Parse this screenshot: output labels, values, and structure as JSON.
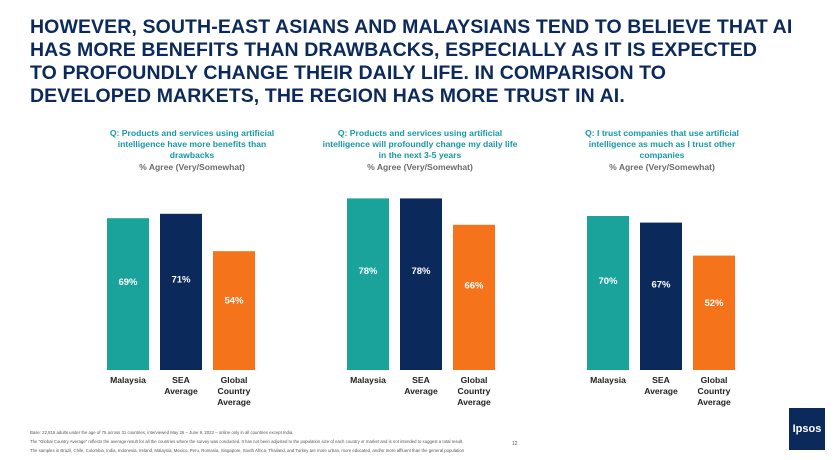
{
  "headline": [
    "HOWEVER, SOUTH-EAST ASIANS AND MALAYSIANS TEND TO BELIEVE THAT AI",
    "HAS MORE BENEFITS THAN DRAWBACKS, ESPECIALLY AS IT IS EXPECTED",
    "TO PROFOUNDLY CHANGE THEIR DAILY LIFE. IN COMPARISON TO",
    "DEVELOPED MARKETS, THE REGION HAS MORE TRUST IN AI."
  ],
  "colors": {
    "malaysia": "#1aa39a",
    "sea": "#0b2a5b",
    "global": "#f5731b",
    "headline": "#0b2a5b",
    "question": "#1598a8"
  },
  "chart_data": [
    {
      "type": "bar",
      "question": [
        "Q: Products and services using artificial",
        "intelligence have more benefits than",
        "drawbacks"
      ],
      "subtitle": "% Agree (Very/Somewhat)",
      "categories": [
        [
          "Malaysia"
        ],
        [
          "SEA",
          "Average"
        ],
        [
          "Global",
          "Country",
          "Average"
        ]
      ],
      "values": [
        69,
        71,
        54
      ],
      "labels": [
        "69%",
        "71%",
        "54%"
      ],
      "ylim": [
        0,
        80
      ]
    },
    {
      "type": "bar",
      "question": [
        "Q: Products and services using artificial",
        "intelligence will profoundly change my daily life",
        "in the next 3-5 years"
      ],
      "subtitle": "% Agree (Very/Somewhat)",
      "categories": [
        [
          "Malaysia"
        ],
        [
          "SEA",
          "Average"
        ],
        [
          "Global",
          "Country",
          "Average"
        ]
      ],
      "values": [
        78,
        78,
        66
      ],
      "labels": [
        "78%",
        "78%",
        "66%"
      ],
      "ylim": [
        0,
        80
      ]
    },
    {
      "type": "bar",
      "question": [
        "Q: I trust companies that use artificial",
        "intelligence as much as I trust other",
        "companies"
      ],
      "subtitle": "% Agree (Very/Somewhat)",
      "categories": [
        [
          "Malaysia"
        ],
        [
          "SEA",
          "Average"
        ],
        [
          "Global",
          "Country",
          "Average"
        ]
      ],
      "values": [
        70,
        67,
        52
      ],
      "labels": [
        "70%",
        "67%",
        "52%"
      ],
      "ylim": [
        0,
        80
      ]
    }
  ],
  "footnotes": [
    "Base: 22,816 adults under the age of 75 across 31 countries, interviewed May 26 – June 9, 2023 – online only in all countries except India.",
    "The \"Global Country Average\" reflects the average result for all the countries where the survey was conducted. It has not been adjusted to the population size of each country or market and is not intended to suggest a total result.",
    "The samples in Brazil, Chile, Colombia, India, Indonesia, Ireland, Malaysia, Mexico, Peru, Romania, Singapore, South Africa, Thailand, and Turkey are more urban, more educated, and/or more affluent than the general population"
  ],
  "page_number": "12",
  "logo_text": "Ipsos"
}
